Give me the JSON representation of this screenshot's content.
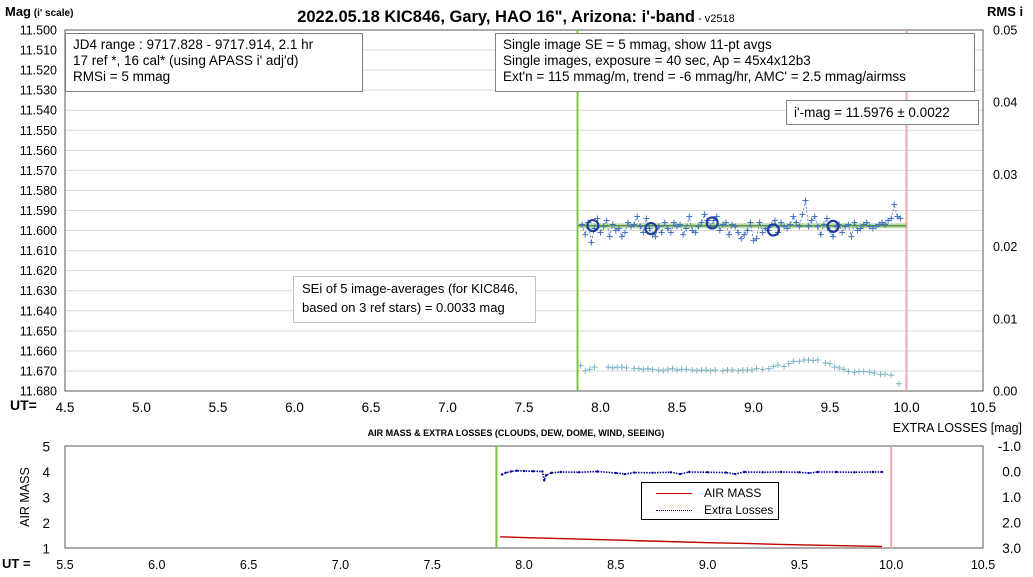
{
  "chart_data": [
    {
      "type": "scatter",
      "title": "2022.05.18 KIC846, Gary, HAO 16\", Arizona: i'-band",
      "subtitle": "- v2518",
      "ylabel_main": "Mag",
      "ylabel_suffix": "(i' scale)",
      "ylabel_right": "RMS i",
      "xlabel": "UT=",
      "xlim": [
        4.5,
        10.5
      ],
      "xticks": [
        "4.5",
        "5.0",
        "5.5",
        "6.0",
        "6.5",
        "7.0",
        "7.5",
        "8.0",
        "8.5",
        "9.0",
        "9.5",
        "10.0",
        "10.5"
      ],
      "ylim": [
        11.68,
        11.5
      ],
      "yticks": [
        "11.500",
        "11.510",
        "11.520",
        "11.530",
        "11.540",
        "11.550",
        "11.560",
        "11.570",
        "11.580",
        "11.590",
        "11.600",
        "11.610",
        "11.620",
        "11.630",
        "11.640",
        "11.650",
        "11.660",
        "11.670",
        "11.680"
      ],
      "y2lim": [
        0,
        0.05
      ],
      "y2ticks": [
        "0.00",
        "0.01",
        "0.02",
        "0.03",
        "0.04",
        "0.05"
      ],
      "start_ut": 7.85,
      "end_ut": 10.0,
      "mean_mag": 11.5976,
      "annotations": {
        "jd_box": [
          "JD4 range : 9717.828 - 9717.914, 2.1  hr",
          "17 ref *, 16 cal* (using APASS i' adj'd)",
          "RMSi = 5 mmag"
        ],
        "info_box": [
          "Single image SE = 5 mmag, show 11-pt avgs",
          "Single images, exposure = 40 sec, Ap = 45x4x12b3",
          "Ext'n = 115 mmag/m, trend = -6 mmag/hr, AMC' = 2.5 mmag/airmss"
        ],
        "mag_box": "i'-mag = 11.5976 ± 0.0022",
        "sei_box": [
          "SEi of 5 image-averages (for KIC846,",
          "based on 3 ref stars) = 0.0033 mag"
        ]
      },
      "series": [
        {
          "name": "single images",
          "color": "#4472c4",
          "x": [
            7.88,
            7.9,
            7.92,
            7.94,
            7.96,
            7.98,
            8.0,
            8.02,
            8.04,
            8.06,
            8.08,
            8.1,
            8.12,
            8.14,
            8.16,
            8.18,
            8.2,
            8.22,
            8.24,
            8.26,
            8.28,
            8.3,
            8.32,
            8.34,
            8.36,
            8.38,
            8.4,
            8.42,
            8.44,
            8.46,
            8.48,
            8.5,
            8.52,
            8.54,
            8.56,
            8.58,
            8.6,
            8.62,
            8.64,
            8.66,
            8.68,
            8.7,
            8.72,
            8.74,
            8.76,
            8.78,
            8.8,
            8.82,
            8.84,
            8.86,
            8.88,
            8.9,
            8.92,
            8.94,
            8.96,
            8.98,
            9.0,
            9.02,
            9.04,
            9.06,
            9.08,
            9.1,
            9.12,
            9.14,
            9.16,
            9.18,
            9.2,
            9.22,
            9.24,
            9.26,
            9.28,
            9.3,
            9.32,
            9.34,
            9.36,
            9.38,
            9.4,
            9.42,
            9.44,
            9.46,
            9.48,
            9.5,
            9.52,
            9.54,
            9.56,
            9.58,
            9.6,
            9.62,
            9.64,
            9.66,
            9.68,
            9.7,
            9.72,
            9.74,
            9.76,
            9.78,
            9.8,
            9.82,
            9.84,
            9.86,
            9.88,
            9.9,
            9.92,
            9.94,
            9.96
          ],
          "y": [
            11.597,
            11.602,
            11.596,
            11.606,
            11.599,
            11.594,
            11.601,
            11.598,
            11.595,
            11.603,
            11.597,
            11.6,
            11.599,
            11.603,
            11.601,
            11.596,
            11.598,
            11.597,
            11.593,
            11.598,
            11.601,
            11.594,
            11.599,
            11.602,
            11.603,
            11.598,
            11.601,
            11.596,
            11.599,
            11.601,
            11.596,
            11.598,
            11.597,
            11.602,
            11.599,
            11.593,
            11.6,
            11.601,
            11.598,
            11.596,
            11.592,
            11.595,
            11.598,
            11.595,
            11.593,
            11.6,
            11.597,
            11.596,
            11.602,
            11.597,
            11.598,
            11.601,
            11.604,
            11.602,
            11.6,
            11.596,
            11.605,
            11.604,
            11.596,
            11.601,
            11.599,
            11.6,
            11.597,
            11.595,
            11.601,
            11.596,
            11.598,
            11.599,
            11.597,
            11.593,
            11.596,
            11.598,
            11.592,
            11.585,
            11.598,
            11.595,
            11.593,
            11.598,
            11.602,
            11.597,
            11.594,
            11.6,
            11.603,
            11.598,
            11.597,
            11.601,
            11.598,
            11.597,
            11.603,
            11.596,
            11.6,
            11.599,
            11.597,
            11.596,
            11.598,
            11.599,
            11.598,
            11.597,
            11.596,
            11.597,
            11.595,
            11.594,
            11.587,
            11.593,
            11.594
          ]
        },
        {
          "name": "11-pt avgs",
          "color": "#1f3f9f",
          "x": [
            7.95,
            8.33,
            8.73,
            9.13,
            9.52
          ],
          "y": [
            11.5975,
            11.599,
            11.5962,
            11.5997,
            11.5979
          ]
        },
        {
          "name": "RMS i",
          "color": "#7fb4c4",
          "x": [
            7.87,
            7.9,
            7.93,
            7.96,
            8.05,
            8.08,
            8.11,
            8.14,
            8.17,
            8.22,
            8.25,
            8.28,
            8.31,
            8.34,
            8.38,
            8.41,
            8.44,
            8.47,
            8.5,
            8.53,
            8.56,
            8.6,
            8.63,
            8.66,
            8.69,
            8.72,
            8.75,
            8.8,
            8.83,
            8.86,
            8.9,
            8.93,
            8.96,
            8.99,
            9.02,
            9.06,
            9.1,
            9.13,
            9.16,
            9.2,
            9.23,
            9.26,
            9.3,
            9.33,
            9.36,
            9.39,
            9.42,
            9.47,
            9.5,
            9.53,
            9.56,
            9.59,
            9.62,
            9.66,
            9.69,
            9.72,
            9.76,
            9.79,
            9.83,
            9.86,
            9.9,
            9.95
          ],
          "y": [
            0.0035,
            0.0028,
            0.003,
            0.0033,
            0.0033,
            0.0032,
            0.0033,
            0.0033,
            0.0032,
            0.0031,
            0.0031,
            0.003,
            0.0031,
            0.003,
            0.0029,
            0.0028,
            0.003,
            0.0031,
            0.0029,
            0.003,
            0.003,
            0.0029,
            0.0028,
            0.0029,
            0.0029,
            0.0028,
            0.0029,
            0.0028,
            0.0029,
            0.0029,
            0.0028,
            0.0029,
            0.0029,
            0.0029,
            0.0031,
            0.003,
            0.0031,
            0.0034,
            0.0036,
            0.0034,
            0.0038,
            0.0041,
            0.0041,
            0.0043,
            0.0043,
            0.0042,
            0.0043,
            0.0039,
            0.0038,
            0.0033,
            0.0032,
            0.003,
            0.0027,
            0.0026,
            0.0027,
            0.0027,
            0.0026,
            0.0025,
            0.0023,
            0.0023,
            0.0022,
            0.001
          ]
        }
      ]
    },
    {
      "type": "line",
      "title": "AIR MASS & EXTRA LOSSES (CLOUDS, DEW, DOME, WIND, SEEING)",
      "ylabel": "AIR MASS",
      "ylabel_right": "EXTRA LOSSES [mag]",
      "xlabel": "UT =",
      "xlim": [
        5.5,
        10.5
      ],
      "xticks": [
        "5.5",
        "6.0",
        "6.5",
        "7.0",
        "7.5",
        "8.0",
        "8.5",
        "9.0",
        "9.5",
        "10.0",
        "10.5"
      ],
      "ylim": [
        1,
        5
      ],
      "yticks": [
        "5",
        "4",
        "3",
        "2",
        "1"
      ],
      "y2lim": [
        -1.0,
        3.0
      ],
      "y2ticks": [
        "-1.0",
        "0.0",
        "1.0",
        "2.0",
        "3.0"
      ],
      "start_ut": 7.85,
      "end_ut": 10.0,
      "legend": [
        "AIR MASS",
        "Extra Losses"
      ],
      "series": [
        {
          "name": "AIR MASS",
          "color": "#c00000",
          "x": [
            7.87,
            8.0,
            8.2,
            8.4,
            8.6,
            8.8,
            9.0,
            9.2,
            9.4,
            9.6,
            9.8,
            9.95
          ],
          "y": [
            1.44,
            1.41,
            1.37,
            1.33,
            1.29,
            1.25,
            1.21,
            1.18,
            1.14,
            1.11,
            1.08,
            1.06
          ]
        },
        {
          "name": "Extra Losses",
          "color": "#0000a0",
          "x": [
            7.88,
            7.9,
            7.93,
            7.96,
            8.0,
            8.05,
            8.1,
            8.11,
            8.12,
            8.15,
            8.2,
            8.3,
            8.4,
            8.5,
            8.55,
            8.6,
            8.7,
            8.8,
            8.85,
            8.9,
            9.0,
            9.1,
            9.15,
            9.2,
            9.3,
            9.4,
            9.5,
            9.55,
            9.6,
            9.7,
            9.8,
            9.9,
            9.95
          ],
          "y": [
            0.12,
            0.05,
            0.0,
            -0.03,
            -0.02,
            -0.01,
            0.0,
            0.35,
            0.15,
            0.05,
            0.02,
            0.03,
            0.0,
            0.06,
            0.1,
            0.04,
            0.05,
            0.03,
            0.1,
            0.02,
            0.03,
            0.04,
            0.1,
            0.02,
            0.03,
            0.02,
            0.03,
            0.06,
            0.02,
            0.02,
            0.03,
            0.02,
            0.02
          ]
        }
      ]
    }
  ]
}
